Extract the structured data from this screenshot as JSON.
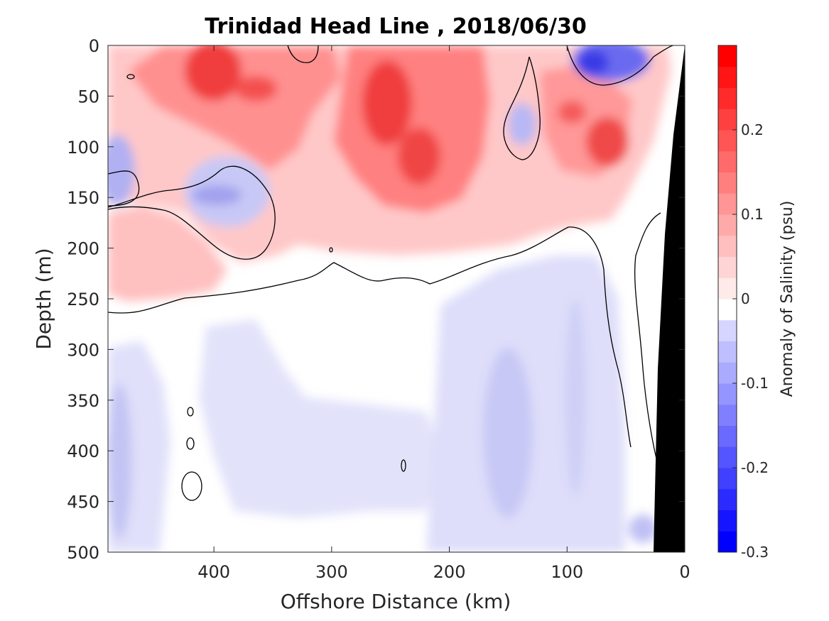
{
  "chart_data": {
    "type": "heatmap",
    "title": "Trinidad Head Line , 2018/06/30",
    "xlabel": "Offshore Distance (km)",
    "ylabel": "Depth (m)",
    "xlim": [
      490,
      0
    ],
    "ylim": [
      0,
      500
    ],
    "x_reversed": true,
    "y_reversed": true,
    "x_ticks": [
      "400",
      "300",
      "200",
      "100",
      "0"
    ],
    "x_tick_values": [
      400,
      300,
      200,
      100,
      0
    ],
    "y_ticks": [
      "0",
      "50",
      "100",
      "150",
      "200",
      "250",
      "300",
      "350",
      "400",
      "450",
      "500"
    ],
    "y_tick_values": [
      0,
      50,
      100,
      150,
      200,
      250,
      300,
      350,
      400,
      450,
      500
    ],
    "colorbar": {
      "label": "Anomaly of Salinity (psu)",
      "range": [
        -0.3,
        0.3
      ],
      "step": 0.025,
      "ticks": [
        "0.2",
        "0.1",
        "0",
        "-0.1",
        "-0.2",
        "-0.3"
      ],
      "tick_values": [
        0.2,
        0.1,
        0,
        -0.1,
        -0.2,
        -0.3
      ],
      "negative_color": "#0000ff",
      "positive_color": "#ff0000",
      "zero_color": "#ffffff"
    },
    "land_color": "#000000",
    "zero_contour_color": "#000000",
    "features": [
      {
        "region": "upper layer 0-150 m",
        "anomaly_psu": 0.2,
        "sign": "positive"
      },
      {
        "region": "core near 250 km, 50-130 m",
        "anomaly_psu": 0.25,
        "sign": "positive"
      },
      {
        "region": "core near 400 km, 0-60 m",
        "anomaly_psu": 0.25,
        "sign": "positive"
      },
      {
        "region": "surface near 70 km, 0-30 m",
        "anomaly_psu": -0.2,
        "sign": "negative"
      },
      {
        "region": "near 390 km, 140-170 m",
        "anomaly_psu": -0.07,
        "sign": "negative"
      },
      {
        "region": "deep layer 280-500 m",
        "anomaly_psu": -0.04,
        "sign": "negative"
      }
    ]
  }
}
